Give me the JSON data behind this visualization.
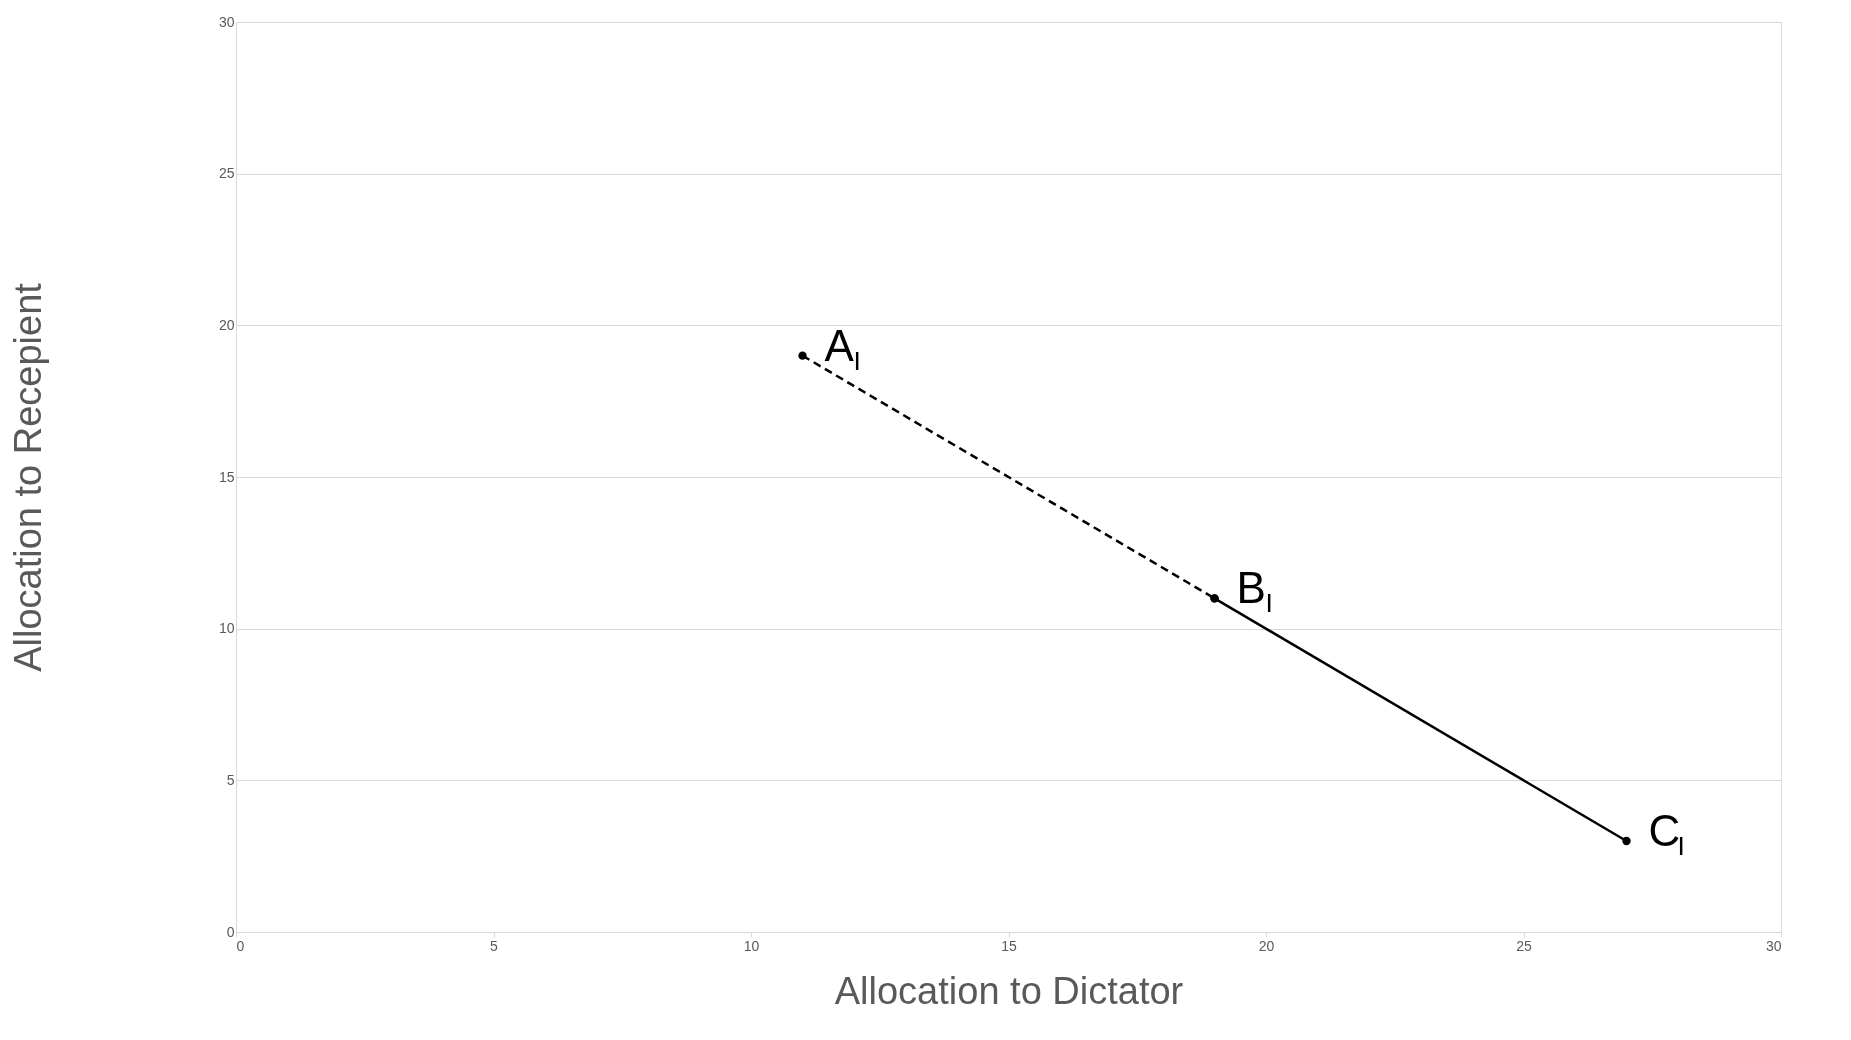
{
  "chart_data": {
    "type": "line",
    "xlabel": "Allocation to Dictator",
    "ylabel": "Allocation to Recepient",
    "xlim": [
      0,
      30
    ],
    "ylim": [
      0,
      30
    ],
    "xticks": [
      0,
      5,
      10,
      15,
      20,
      25,
      30
    ],
    "yticks": [
      0,
      5,
      10,
      15,
      20,
      25,
      30
    ],
    "grid": "y",
    "marker": "circle",
    "series": [
      {
        "color": "#000000",
        "line_style": "dashed",
        "x": [
          11,
          19
        ],
        "values": [
          19,
          11
        ]
      },
      {
        "color": "#000000",
        "line_style": "solid",
        "x": [
          19,
          27
        ],
        "values": [
          11,
          3
        ]
      }
    ],
    "annotations": [
      {
        "text": "A$_{I}$",
        "x": 11,
        "y": 19
      },
      {
        "text": "B$_{I}$",
        "x": 19,
        "y": 11
      },
      {
        "text": "C$_{I}$",
        "x": 27,
        "y": 3
      }
    ]
  }
}
